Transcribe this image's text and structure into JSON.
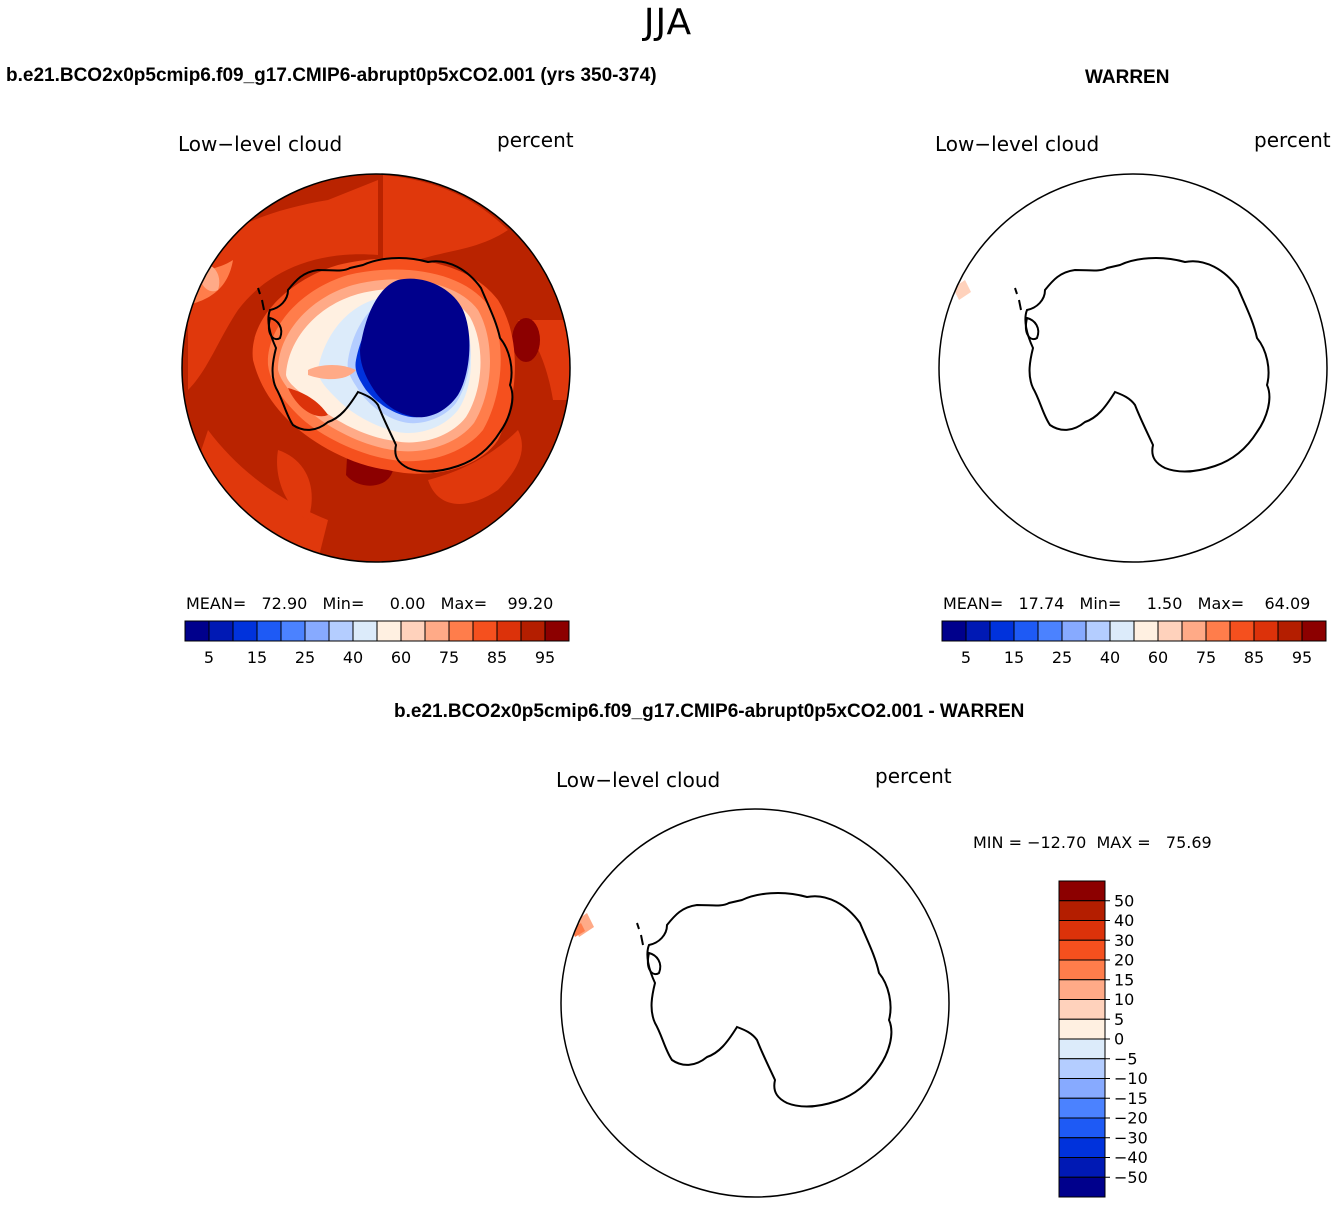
{
  "season": "JJA",
  "panels": {
    "test": {
      "case_title": "b.e21.BCO2x0p5cmip6.f09_g17.CMIP6-abrupt0p5xCO2.001 (yrs 350-374)",
      "variable": "Low−level cloud",
      "units": "percent",
      "stats": "MEAN=   72.90   Min=     0.00   Max=    99.20"
    },
    "obs": {
      "case_title": "WARREN",
      "variable": "Low−level cloud",
      "units": "percent",
      "stats": "MEAN=   17.74   Min=     1.50   Max=    64.09"
    },
    "diff": {
      "case_title": "b.e21.BCO2x0p5cmip6.f09_g17.CMIP6-abrupt0p5xCO2.001 - WARREN",
      "variable": "Low−level cloud",
      "units": "percent",
      "stats": "MIN = −12.70  MAX =   75.69"
    }
  },
  "colorbar_abs": {
    "colors": [
      "#00008c",
      "#0019b4",
      "#0032dc",
      "#1e5af5",
      "#4b82ff",
      "#87aaff",
      "#b4cdff",
      "#dcebfa",
      "#fff0e1",
      "#ffd2bc",
      "#ffaa87",
      "#ff7d4b",
      "#f5501e",
      "#dc320a",
      "#b41e00",
      "#8c0000"
    ],
    "tick_labels": [
      "5",
      "15",
      "25",
      "40",
      "60",
      "75",
      "85",
      "95"
    ]
  },
  "colorbar_diff": {
    "colors": [
      "#8c0000",
      "#b41e00",
      "#dc320a",
      "#f5501e",
      "#ff7d4b",
      "#ffaa87",
      "#ffd2bc",
      "#fff0e1",
      "#dcebfa",
      "#b4cdff",
      "#87aaff",
      "#4b82ff",
      "#1e5af5",
      "#0032dc",
      "#0019b4",
      "#00008c"
    ],
    "tick_labels": [
      "50",
      "40",
      "30",
      "20",
      "15",
      "10",
      "5",
      "0",
      "−5",
      "−10",
      "−15",
      "−20",
      "−30",
      "−40",
      "−50"
    ]
  }
}
